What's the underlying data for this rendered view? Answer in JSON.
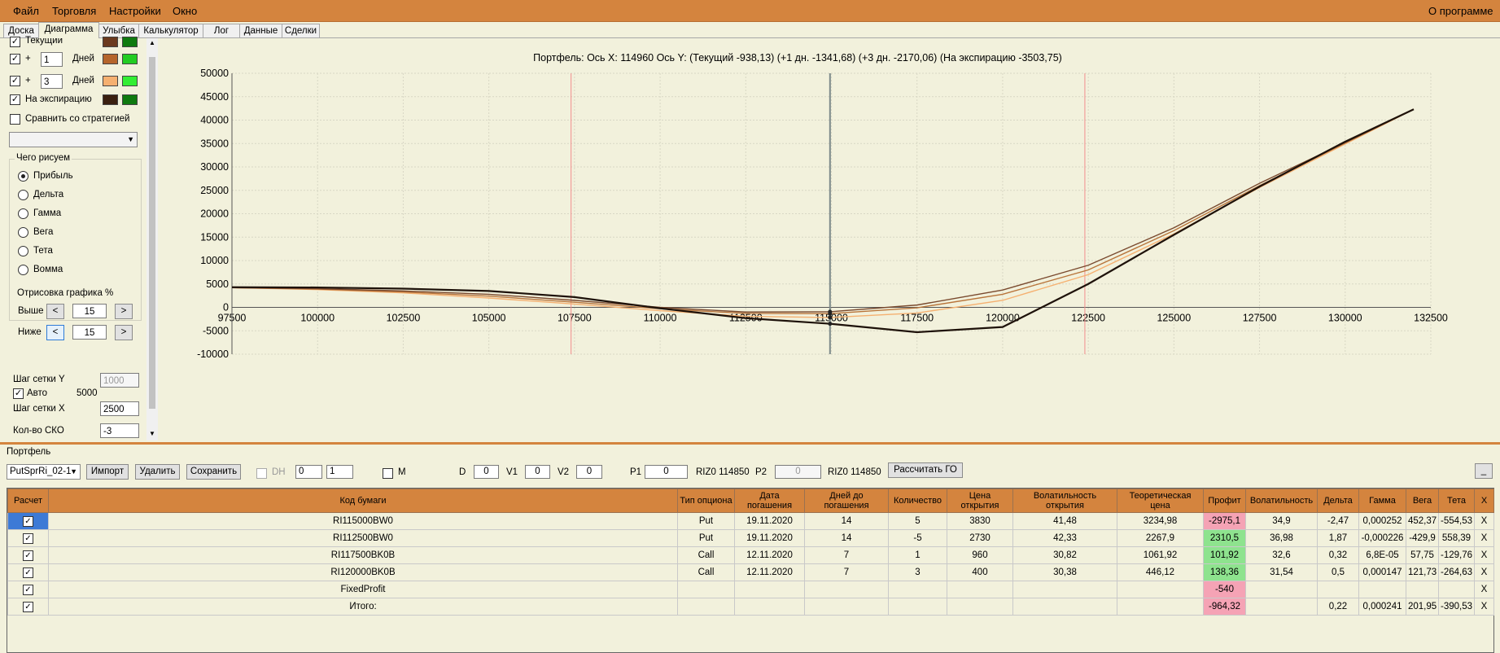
{
  "menu": {
    "file": "Файл",
    "trade": "Торговля",
    "settings": "Настройки",
    "window": "Окно",
    "about": "О программе"
  },
  "tabs": [
    "Доска",
    "Диаграмма",
    "Улыбка",
    "Калькулятор",
    "Лог",
    "Данные",
    "Сделки"
  ],
  "active_tab": "Диаграмма",
  "left_panel": {
    "current_label": "Текущий",
    "plus1_sign": "+",
    "plus1_days": "1",
    "plus1_unit": "Дней",
    "plus3_sign": "+",
    "plus3_days": "3",
    "plus3_unit": "Дней",
    "expiration_label": "На экспирацию",
    "compare_label": "Сравнить со стратегией",
    "draw_group": "Чего рисуем",
    "draw_options": [
      "Прибыль",
      "Дельта",
      "Гамма",
      "Вега",
      "Тета",
      "Вомма"
    ],
    "draw_selected": "Прибыль",
    "render_group": "Отрисовка графика %",
    "above_label": "Выше",
    "above_value": "15",
    "below_label": "Ниже",
    "below_value": "15",
    "btn_left": "<",
    "btn_right": ">",
    "grid_y_label": "Шаг сетки Y",
    "grid_y_value": "1000",
    "auto_label": "Авто",
    "auto_value": "5000",
    "grid_x_label": "Шаг сетки X",
    "grid_x_value": "2500",
    "sko_label": "Кол-во СКО",
    "sko_value": "-3",
    "swatch_colors": {
      "current": [
        "#6b3a1f",
        "#0f7a0f"
      ],
      "plus1": [
        "#b5652b",
        "#22cc22"
      ],
      "plus3": [
        "#f5b070",
        "#33ee33"
      ],
      "expiration": [
        "#3a2010",
        "#0f7a0f"
      ]
    }
  },
  "chart_title": "Портфель: Ось X: 114960 Ось Y:  (Текущий -938,13)  (+1 дн. -1341,68)  (+3 дн. -2170,06)  (На экспирацию -3503,75)",
  "chart_data": {
    "type": "line",
    "xlim": [
      97500,
      132500
    ],
    "ylim": [
      -10000,
      50000
    ],
    "x_ticks": [
      "97500",
      "100000",
      "102500",
      "105000",
      "107500",
      "110000",
      "112500",
      "115000",
      "117500",
      "120000",
      "122500",
      "125000",
      "127500",
      "130000",
      "132500"
    ],
    "y_ticks": [
      "50000",
      "45000",
      "40000",
      "35000",
      "30000",
      "25000",
      "20000",
      "15000",
      "10000",
      "5000",
      "0",
      "-5000",
      "-10000"
    ],
    "grid": true,
    "vertical_markers": {
      "current": 114960,
      "bounds": [
        107400,
        122400
      ]
    },
    "series": [
      {
        "color": "#1e120a",
        "x": [
          97500,
          100000,
          102500,
          105000,
          107500,
          110000,
          112500,
          114960,
          117500,
          120000,
          122500,
          125000,
          127500,
          130000,
          132000
        ],
        "y": [
          4300,
          4250,
          4000,
          3500,
          2200,
          -200,
          -2300,
          -3500,
          -5300,
          -4200,
          5000,
          15500,
          25800,
          35400,
          42300
        ]
      },
      {
        "color": "#7a4a2e",
        "x": [
          97500,
          100000,
          102500,
          105000,
          107500,
          110000,
          112500,
          114960,
          117500,
          120000,
          122500,
          125000,
          127500,
          130000,
          132000
        ],
        "y": [
          4200,
          4000,
          3500,
          2800,
          1500,
          0,
          -1000,
          -938,
          500,
          3700,
          9000,
          17000,
          26500,
          35200,
          42300
        ]
      },
      {
        "color": "#b8743a",
        "x": [
          97500,
          100000,
          102500,
          105000,
          107500,
          110000,
          112500,
          114960,
          117500,
          120000,
          122500,
          125000,
          127500,
          130000,
          132000
        ],
        "y": [
          4200,
          3900,
          3300,
          2400,
          1100,
          -300,
          -1300,
          -1342,
          -100,
          2800,
          8000,
          16400,
          26000,
          35100,
          42300
        ]
      },
      {
        "color": "#f5b070",
        "x": [
          97500,
          100000,
          102500,
          105000,
          107500,
          110000,
          112500,
          114960,
          117500,
          120000,
          122500,
          125000,
          127500,
          130000,
          132000
        ],
        "y": [
          4200,
          3800,
          3100,
          2000,
          700,
          -700,
          -1900,
          -2170,
          -1200,
          1500,
          7000,
          15700,
          25600,
          34900,
          42300
        ]
      }
    ]
  },
  "portfolio": {
    "label": "Портфель",
    "name": "PutSprRi_02-1",
    "import": "Импорт",
    "delete": "Удалить",
    "save": "Сохранить",
    "dh": "DH",
    "dh_a": "0",
    "dh_b": "1",
    "m": "M",
    "d_label": "D",
    "d_value": "0",
    "v1_label": "V1",
    "v1_value": "0",
    "v2_label": "V2",
    "v2_value": "0",
    "p1_label": "P1",
    "p1_value": "0",
    "p1_instr": "RIZ0 114850",
    "p2_label": "P2",
    "p2_value": "0",
    "p2_instr": "RIZ0 114850",
    "calc_go": "Рассчитать ГО",
    "min_btn": "_"
  },
  "table": {
    "headers": [
      "Расчет",
      "Код бумаги",
      "Тип опциона",
      "Дата погашения",
      "Дней до погашения",
      "Количество",
      "Цена открытия",
      "Волатильность открытия",
      "Теоретическая цена",
      "Профит",
      "Волатильность",
      "Дельта",
      "Гамма",
      "Вега",
      "Тета",
      "X"
    ],
    "rows": [
      {
        "code": "RI115000BW0",
        "type": "Put",
        "date": "19.11.2020",
        "days": "14",
        "qty": "5",
        "open": "3830",
        "vol_open": "41,48",
        "theo": "3234,98",
        "profit": "-2975,1",
        "profit_sign": "neg",
        "vol": "34,9",
        "delta": "-2,47",
        "gamma": "0,000252",
        "vega": "452,37",
        "theta": "-554,53",
        "x": "X"
      },
      {
        "code": "RI112500BW0",
        "type": "Put",
        "date": "19.11.2020",
        "days": "14",
        "qty": "-5",
        "open": "2730",
        "vol_open": "42,33",
        "theo": "2267,9",
        "profit": "2310,5",
        "profit_sign": "pos",
        "vol": "36,98",
        "delta": "1,87",
        "gamma": "-0,000226",
        "vega": "-429,9",
        "theta": "558,39",
        "x": "X"
      },
      {
        "code": "RI117500BK0B",
        "type": "Call",
        "date": "12.11.2020",
        "days": "7",
        "qty": "1",
        "open": "960",
        "vol_open": "30,82",
        "theo": "1061,92",
        "profit": "101,92",
        "profit_sign": "pos",
        "vol": "32,6",
        "delta": "0,32",
        "gamma": "6,8E-05",
        "vega": "57,75",
        "theta": "-129,76",
        "x": "X"
      },
      {
        "code": "RI120000BK0B",
        "type": "Call",
        "date": "12.11.2020",
        "days": "7",
        "qty": "3",
        "open": "400",
        "vol_open": "30,38",
        "theo": "446,12",
        "profit": "138,36",
        "profit_sign": "pos",
        "vol": "31,54",
        "delta": "0,5",
        "gamma": "0,000147",
        "vega": "121,73",
        "theta": "-264,63",
        "x": "X"
      },
      {
        "code": "FixedProfit",
        "type": "",
        "date": "",
        "days": "",
        "qty": "",
        "open": "",
        "vol_open": "",
        "theo": "",
        "profit": "-540",
        "profit_sign": "neg",
        "vol": "",
        "delta": "",
        "gamma": "",
        "vega": "",
        "theta": "",
        "x": "X"
      },
      {
        "code": "Итого:",
        "type": "",
        "date": "",
        "days": "",
        "qty": "",
        "open": "",
        "vol_open": "",
        "theo": "",
        "profit": "-964,32",
        "profit_sign": "neg",
        "vol": "",
        "delta": "0,22",
        "gamma": "0,000241",
        "vega": "201,95",
        "theta": "-390,53",
        "x": "X"
      }
    ]
  }
}
